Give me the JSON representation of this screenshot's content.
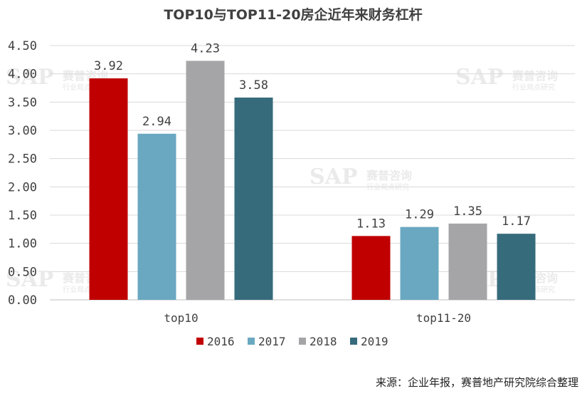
{
  "watermark": {
    "logo": "SAP",
    "text": "赛普咨询",
    "sub": "行业观点研究"
  },
  "source": "来源：企业年报，赛普地产研究院综合整理",
  "chart_data": {
    "type": "bar",
    "title": "TOP10与TOP11-20房企近年来财务杠杆",
    "categories": [
      "top10",
      "top11-20"
    ],
    "series": [
      {
        "name": "2016",
        "color": "#c00000",
        "values": [
          3.92,
          1.13
        ],
        "labels": [
          "3.92",
          "1.13"
        ]
      },
      {
        "name": "2017",
        "color": "#6aa8c1",
        "values": [
          2.94,
          1.29
        ],
        "labels": [
          "2.94",
          "1.29"
        ]
      },
      {
        "name": "2018",
        "color": "#a5a5a7",
        "values": [
          4.23,
          1.35
        ],
        "labels": [
          "4.23",
          "1.35"
        ]
      },
      {
        "name": "2019",
        "color": "#366b7c",
        "values": [
          3.58,
          1.17
        ],
        "labels": [
          "3.58",
          "1.17"
        ]
      }
    ],
    "ylim": [
      0,
      4.5
    ],
    "yticks": [
      "0.00",
      "0.50",
      "1.00",
      "1.50",
      "2.00",
      "2.50",
      "3.00",
      "3.50",
      "4.00",
      "4.50"
    ],
    "grid": true,
    "legend": "bottom",
    "xlabel": "",
    "ylabel": ""
  }
}
